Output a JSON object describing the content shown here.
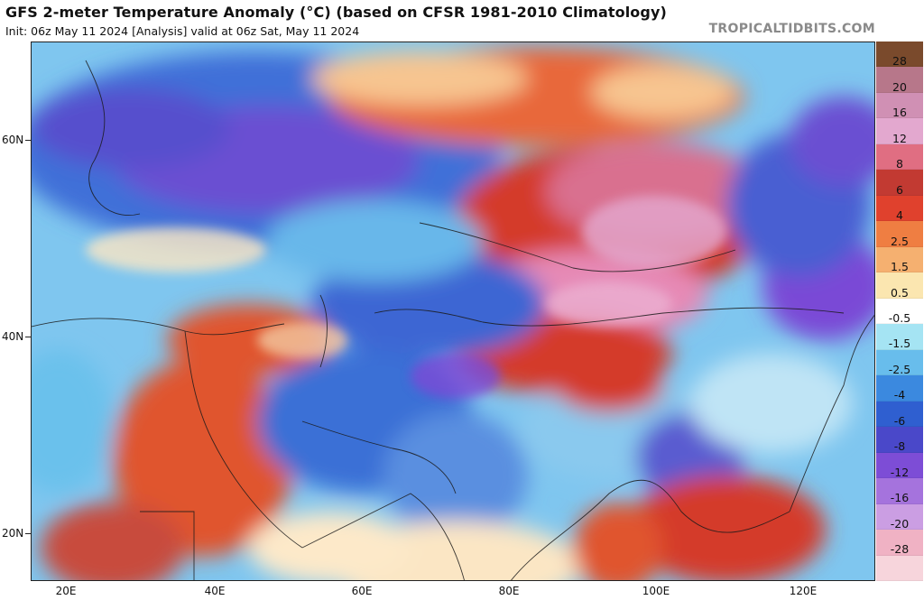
{
  "header": {
    "title": "GFS 2-meter Temperature Anomaly (°C) (based on CFSR 1981-2010 Climatology)",
    "subtitle": "Init: 06z May 11 2024   [Analysis]   valid at 06z Sat, May 11 2024",
    "credit": "TROPICALTIDBITS.COM"
  },
  "map": {
    "lat_labels": [
      "60N",
      "40N",
      "20N"
    ],
    "lon_labels": [
      "20E",
      "40E",
      "60E",
      "80E",
      "100E",
      "120E"
    ],
    "region": "Asia / Middle East",
    "colors": {
      "warm_strong": "#d43a2a",
      "warm_pink": "#e68ab6",
      "cold_blue": "#3b6fd6",
      "cold_purple": "#7a4ad6",
      "neutral": "#fff2d9"
    }
  },
  "colorbar": {
    "labels": [
      "28",
      "20",
      "16",
      "12",
      "8",
      "6",
      "4",
      "2.5",
      "1.5",
      "0.5",
      "-0.5",
      "-1.5",
      "-2.5",
      "-4",
      "-6",
      "-8",
      "-12",
      "-16",
      "-20",
      "-28"
    ],
    "colors": [
      "#7a4a2c",
      "#b7778a",
      "#d090b4",
      "#e3a8cf",
      "#e06e82",
      "#c23a32",
      "#e0412d",
      "#ef7e42",
      "#f5b070",
      "#fbe6b0",
      "#ffffff",
      "#a5e4f3",
      "#68bdec",
      "#3b89df",
      "#2f5fd0",
      "#4a48c9",
      "#7d4dd6",
      "#a573dd",
      "#cb9ee3",
      "#f0b2c4",
      "#f7d5dc"
    ]
  }
}
